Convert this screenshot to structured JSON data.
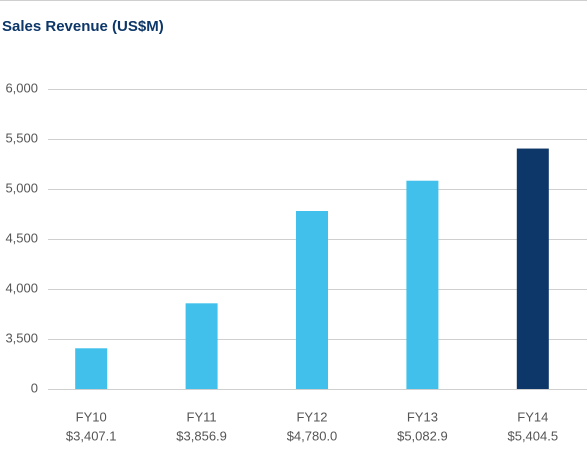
{
  "chart_data": {
    "type": "bar",
    "title": "Sales Revenue (US$M)",
    "categories": [
      "FY10",
      "FY11",
      "FY12",
      "FY13",
      "FY14"
    ],
    "values": [
      3407.1,
      3856.9,
      4780.0,
      5082.9,
      5404.5
    ],
    "value_labels": [
      "$3,407.1",
      "$3,856.9",
      "$4,780.0",
      "$5,082.9",
      "$5,404.5"
    ],
    "colors": [
      "#41c0eb",
      "#41c0eb",
      "#41c0eb",
      "#41c0eb",
      "#0d3768"
    ],
    "ylim": [
      0,
      6000
    ],
    "axis_break": [
      0,
      3000
    ],
    "yticks": [
      0,
      {
        "value": 3500,
        "label": "3,500"
      },
      {
        "value": 4000,
        "label": "4,000"
      },
      {
        "value": 4500,
        "label": "4,500"
      },
      {
        "value": 5000,
        "label": "5,000"
      },
      {
        "value": 5500,
        "label": "5,500"
      },
      {
        "value": 6000,
        "label": "6,000"
      }
    ],
    "grid": true
  }
}
